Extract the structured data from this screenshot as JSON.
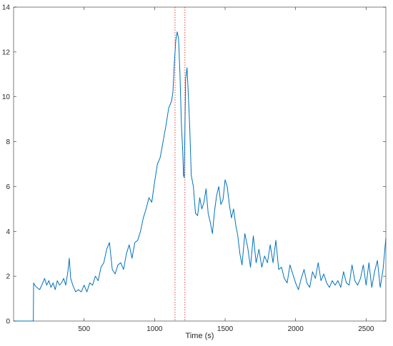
{
  "chart_data": {
    "type": "line",
    "title": "",
    "xlabel": "Time (s)",
    "ylabel": "",
    "xlim": [
      0,
      2640
    ],
    "ylim": [
      0,
      14
    ],
    "grid": false,
    "xticks": [
      500,
      1000,
      1500,
      2000,
      2500
    ],
    "yticks": [
      0,
      2,
      4,
      6,
      8,
      10,
      12,
      14
    ],
    "series_color": "#0072BD",
    "vline_color": "#E8473B",
    "vlines": [
      1145,
      1215
    ],
    "series": [
      {
        "x": [
          0,
          140,
          142,
          150,
          165,
          185,
          200,
          220,
          235,
          250,
          265,
          280,
          295,
          310,
          325,
          340,
          355,
          370,
          385,
          395,
          405,
          420,
          440,
          460,
          480,
          500,
          520,
          540,
          560,
          580,
          600,
          620,
          640,
          660,
          680,
          700,
          720,
          740,
          760,
          780,
          800,
          820,
          840,
          860,
          880,
          900,
          920,
          940,
          960,
          980,
          1000,
          1020,
          1040,
          1060,
          1080,
          1100,
          1120,
          1130,
          1140,
          1150,
          1160,
          1170,
          1180,
          1190,
          1200,
          1205,
          1210,
          1215,
          1220,
          1230,
          1240,
          1250,
          1260,
          1275,
          1290,
          1305,
          1320,
          1335,
          1350,
          1365,
          1380,
          1395,
          1410,
          1425,
          1440,
          1455,
          1470,
          1485,
          1500,
          1515,
          1530,
          1545,
          1560,
          1575,
          1590,
          1605,
          1620,
          1640,
          1660,
          1680,
          1700,
          1720,
          1740,
          1760,
          1780,
          1800,
          1820,
          1840,
          1860,
          1880,
          1900,
          1920,
          1940,
          1960,
          1980,
          2000,
          2020,
          2040,
          2060,
          2080,
          2100,
          2120,
          2140,
          2160,
          2180,
          2200,
          2220,
          2240,
          2260,
          2280,
          2300,
          2320,
          2340,
          2360,
          2380,
          2400,
          2420,
          2440,
          2460,
          2480,
          2500,
          2520,
          2540,
          2560,
          2580,
          2600,
          2620,
          2640
        ],
        "y": [
          0,
          0,
          1.7,
          1.6,
          1.5,
          1.4,
          1.6,
          1.9,
          1.6,
          1.8,
          1.5,
          1.7,
          1.4,
          1.8,
          1.6,
          1.7,
          1.9,
          1.6,
          2.2,
          2.8,
          1.9,
          1.6,
          1.3,
          1.4,
          1.3,
          1.6,
          1.3,
          1.7,
          1.6,
          2.0,
          1.8,
          2.4,
          2.6,
          3.2,
          3.5,
          2.3,
          2.1,
          2.5,
          2.6,
          2.3,
          3.0,
          3.4,
          2.8,
          3.5,
          3.6,
          4.0,
          4.6,
          5.0,
          5.5,
          5.3,
          6.2,
          7.0,
          7.3,
          8.0,
          8.7,
          9.5,
          9.8,
          10.2,
          11.5,
          12.5,
          12.9,
          12.6,
          11.0,
          8.8,
          7.5,
          6.5,
          6.4,
          8.5,
          10.8,
          11.3,
          10.0,
          8.5,
          6.5,
          6.0,
          4.8,
          4.7,
          5.5,
          5.0,
          5.3,
          5.9,
          4.8,
          4.4,
          3.9,
          4.9,
          5.6,
          6.0,
          5.2,
          5.4,
          6.3,
          6.0,
          5.2,
          4.6,
          5.0,
          4.3,
          3.8,
          3.0,
          2.5,
          3.9,
          3.3,
          2.4,
          3.8,
          2.6,
          3.2,
          2.4,
          2.9,
          2.6,
          3.4,
          2.6,
          3.6,
          2.3,
          2.4,
          1.9,
          1.7,
          2.5,
          2.1,
          1.7,
          1.4,
          1.9,
          2.3,
          1.7,
          1.5,
          2.2,
          1.9,
          2.6,
          1.8,
          2.1,
          1.7,
          1.5,
          1.8,
          1.6,
          1.8,
          1.5,
          2.2,
          1.7,
          1.6,
          2.5,
          1.8,
          1.6,
          1.9,
          2.5,
          1.6,
          2.6,
          1.5,
          2.2,
          2.7,
          1.5,
          2.3,
          3.7
        ]
      }
    ]
  }
}
